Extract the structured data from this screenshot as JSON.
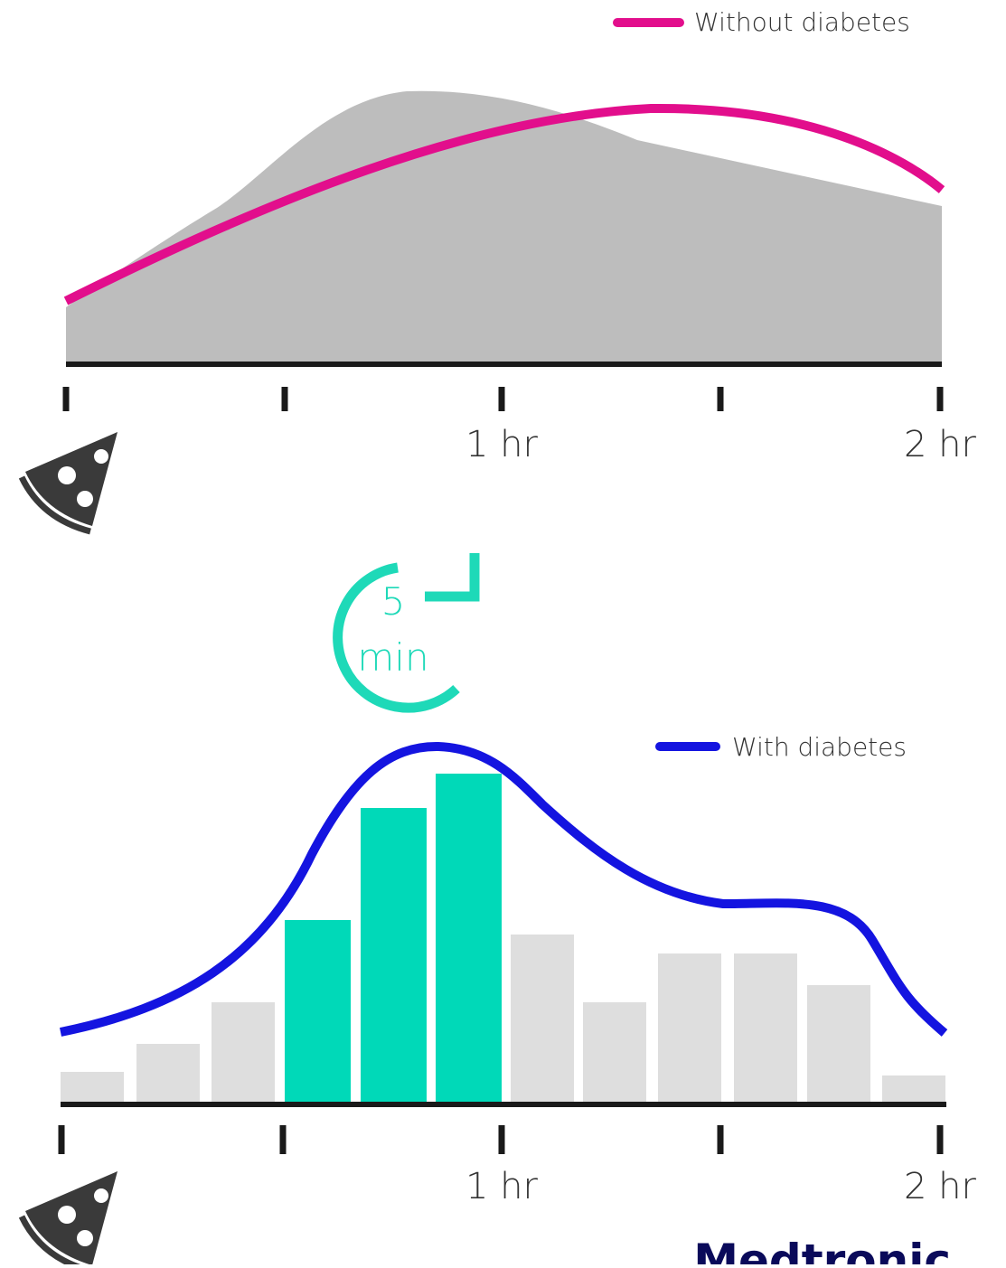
{
  "top_panel": {
    "legend": "Without diabetes",
    "tick_labels": [
      "1 hr",
      "2 hr"
    ]
  },
  "interval": {
    "number": "5",
    "unit": "min"
  },
  "bottom_panel": {
    "legend": "With diabetes",
    "tick_labels": [
      "1 hr",
      "2 hr"
    ]
  },
  "brand": "Medtronic"
}
